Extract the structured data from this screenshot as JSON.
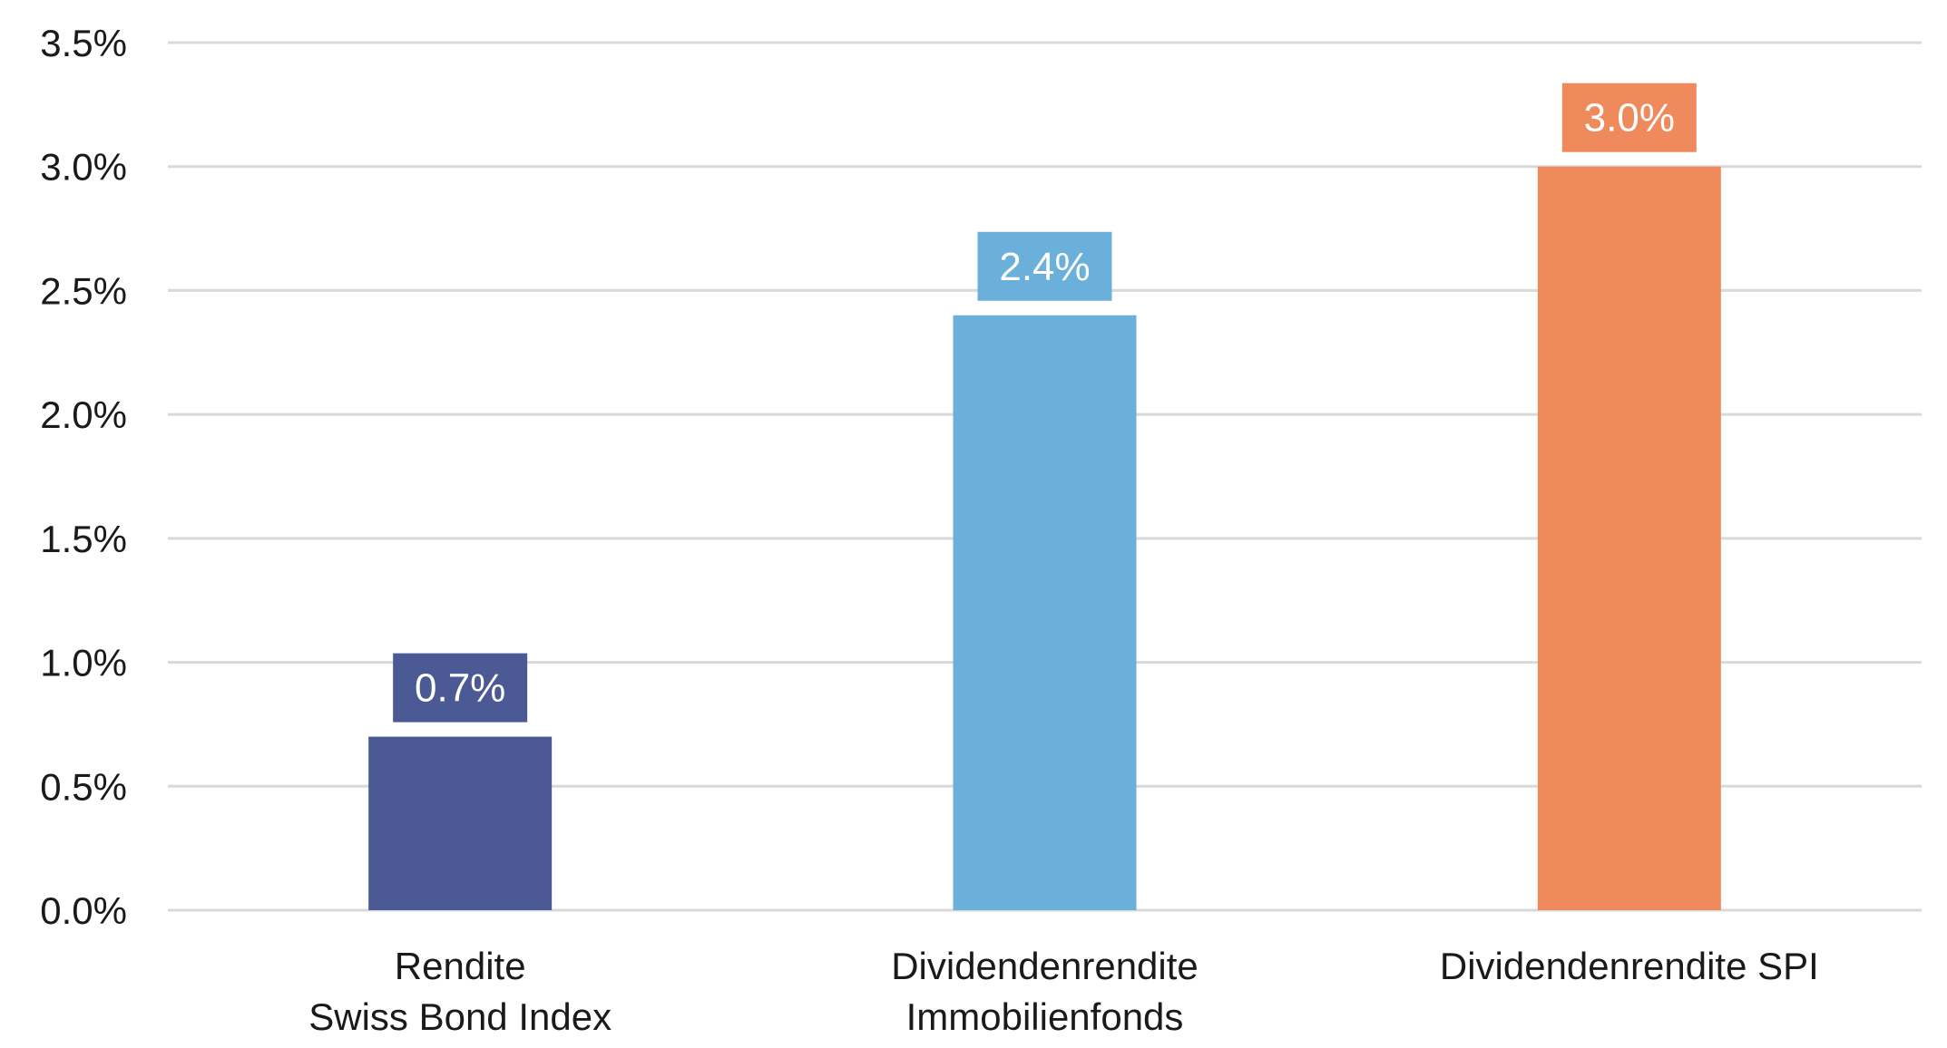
{
  "chart_data": {
    "type": "bar",
    "categories": [
      [
        "Rendite",
        "Swiss Bond Index"
      ],
      [
        "Dividendenrendite",
        "Immobilienfonds"
      ],
      [
        "Dividendenrendite SPI"
      ]
    ],
    "values": [
      0.7,
      2.4,
      3.0
    ],
    "data_labels": [
      "0.7%",
      "2.4%",
      "3.0%"
    ],
    "colors": [
      "#4b5a94",
      "#6ab0da",
      "#ef8a5d"
    ],
    "ylim": [
      0,
      3.5
    ],
    "y_ticks": [
      0.0,
      0.5,
      1.0,
      1.5,
      2.0,
      2.5,
      3.0,
      3.5
    ],
    "y_tick_labels": [
      "0.0%",
      "0.5%",
      "1.0%",
      "1.5%",
      "2.0%",
      "2.5%",
      "3.0%",
      "3.5%"
    ],
    "grid": true,
    "legend": "none"
  }
}
